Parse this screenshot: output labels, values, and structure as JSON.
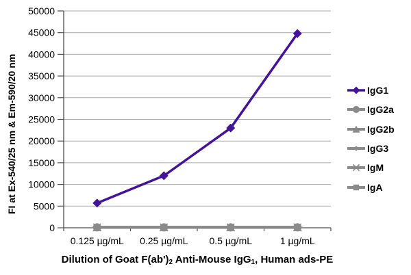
{
  "chart_data": {
    "type": "line",
    "categories": [
      "0.125 µg/mL",
      "0.25 µg/mL",
      "0.5 µg/mL",
      "1 µg/mL"
    ],
    "series": [
      {
        "name": "IgG1",
        "marker": "diamond",
        "color": "#44129b",
        "values": [
          5700,
          12000,
          23000,
          44800
        ]
      },
      {
        "name": "IgG2a",
        "marker": "circle",
        "color": "#8a8a8a",
        "values": [
          100,
          100,
          100,
          100
        ]
      },
      {
        "name": "IgG2b",
        "marker": "triangle",
        "color": "#8a8a8a",
        "values": [
          100,
          100,
          100,
          100
        ]
      },
      {
        "name": "IgG3",
        "marker": "diamond-small",
        "color": "#8a8a8a",
        "values": [
          100,
          100,
          100,
          100
        ]
      },
      {
        "name": "IgM",
        "marker": "asterisk",
        "color": "#8a8a8a",
        "values": [
          100,
          100,
          100,
          100
        ]
      },
      {
        "name": "IgA",
        "marker": "square",
        "color": "#8a8a8a",
        "values": [
          100,
          100,
          100,
          100
        ]
      }
    ],
    "title": "",
    "ylabel": "FI at Ex-540/25 nm & Em-590/20 nm",
    "xlabel": "Dilution of Goat F(ab')2 Anti-Mouse IgG1, Human ads-PE",
    "ylim": [
      0,
      50000
    ],
    "ytick_step": 5000,
    "grid": true,
    "legend_position": "right"
  },
  "x_axis": {
    "title_parts": {
      "p1": "Dilution of Goat F(ab')",
      "sub1": "2",
      "p2": " Anti-Mouse IgG",
      "sub2": "1",
      "p3": ", Human ads-PE"
    }
  },
  "colors": {
    "grid": "#a9a9a9",
    "axis": "#4d4d4d",
    "accent_purple": "#44129b",
    "series_gray": "#8a8a8a",
    "text": "#000000"
  }
}
